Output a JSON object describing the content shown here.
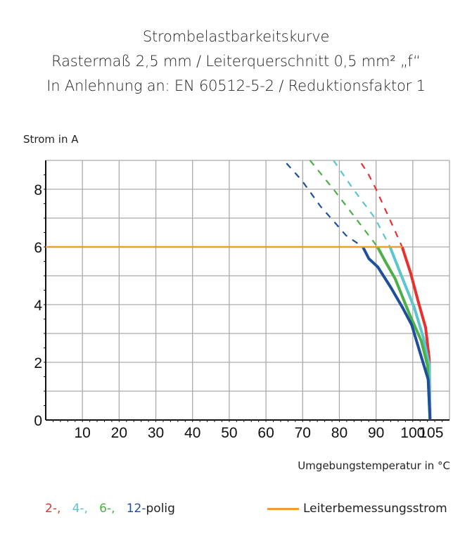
{
  "chart_data": {
    "type": "line",
    "title": "Strombelastbarkeitskurve",
    "subtitle_lines": [
      "Rastermaß 2,5 mm / Leiterquerschnitt 0,5 mm² „f“",
      "In Anlehnung an: EN 60512-5-2 / Reduktionsfaktor 1"
    ],
    "xlabel": "Umgebungstemperatur in °C",
    "ylabel": "Strom in A",
    "xlim": [
      0,
      110
    ],
    "ylim": [
      0,
      9
    ],
    "x_ticks": [
      10,
      20,
      30,
      40,
      50,
      60,
      70,
      80,
      90,
      100,
      105
    ],
    "y_ticks": [
      0,
      2,
      4,
      6,
      8
    ],
    "grid": true,
    "legend_placement": "bottom",
    "series": [
      {
        "name": "2-",
        "color": "#e8312f",
        "solid": [
          [
            97.1,
            6
          ],
          [
            99.4,
            5.1
          ],
          [
            101.5,
            4.1
          ],
          [
            103.5,
            3.2
          ],
          [
            104.5,
            2.1
          ],
          [
            104.7,
            0
          ]
        ],
        "dashed": [
          [
            86,
            8.9
          ],
          [
            88,
            8.5
          ],
          [
            90,
            8
          ],
          [
            92.5,
            7.3
          ],
          [
            95,
            6.6
          ],
          [
            97.1,
            6
          ]
        ]
      },
      {
        "name": "4-",
        "color": "#5bc5d0",
        "solid": [
          [
            93.8,
            6
          ],
          [
            96.9,
            5.0
          ],
          [
            100.4,
            3.9
          ],
          [
            102.9,
            2.85
          ],
          [
            104.5,
            1.9
          ],
          [
            104.7,
            0
          ]
        ],
        "dashed": [
          [
            78.4,
            9
          ],
          [
            83.8,
            8
          ],
          [
            89.7,
            7
          ],
          [
            93.8,
            6
          ]
        ]
      },
      {
        "name": "6-",
        "color": "#4caf47",
        "solid": [
          [
            90.4,
            6
          ],
          [
            92.5,
            5.5
          ],
          [
            95.2,
            4.9
          ],
          [
            99.0,
            3.7
          ],
          [
            102.3,
            2.75
          ],
          [
            104,
            1.9
          ],
          [
            104.7,
            0
          ]
        ],
        "dashed": [
          [
            72,
            9
          ],
          [
            78.4,
            8
          ],
          [
            84.4,
            7
          ],
          [
            90.4,
            6
          ]
        ]
      },
      {
        "name": "12-",
        "color": "#1d4f9c",
        "solid": [
          [
            86.4,
            6
          ],
          [
            88,
            5.6
          ],
          [
            90.5,
            5.3
          ],
          [
            94,
            4.6
          ],
          [
            97.2,
            3.9
          ],
          [
            99.7,
            3.3
          ],
          [
            102.3,
            2.2
          ],
          [
            104.2,
            1.4
          ],
          [
            104.7,
            0
          ]
        ],
        "dashed": [
          [
            65.6,
            8.9
          ],
          [
            69.8,
            8.3
          ],
          [
            74.9,
            7.4
          ],
          [
            78.4,
            6.9
          ],
          [
            81.8,
            6.4
          ],
          [
            86.4,
            6
          ]
        ]
      },
      {
        "name": "Leiterbemessungsstrom",
        "color": "#f39a2b",
        "solid": [
          [
            0,
            6
          ],
          [
            97.1,
            6
          ]
        ],
        "dashed": []
      }
    ],
    "legend": {
      "poles": [
        "2-,",
        "4-,",
        "6-,",
        "12-"
      ],
      "poles_suffix": "polig",
      "rated": "Leiterbemessungsstrom"
    }
  }
}
